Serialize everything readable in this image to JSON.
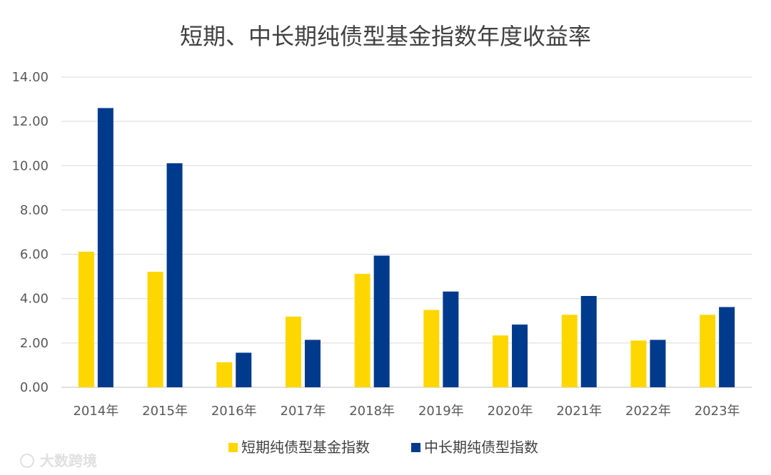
{
  "chart_data": {
    "type": "bar",
    "title": "短期、中长期纯债型基金指数年度收益率",
    "categories": [
      "2014年",
      "2015年",
      "2016年",
      "2017年",
      "2018年",
      "2019年",
      "2020年",
      "2021年",
      "2022年",
      "2023年"
    ],
    "series": [
      {
        "name": "短期纯债型基金指数",
        "color": "#FFD700",
        "values": [
          6.12,
          5.21,
          1.13,
          3.19,
          5.12,
          3.49,
          2.34,
          3.27,
          2.11,
          3.27
        ]
      },
      {
        "name": "中长期纯债型指数",
        "color": "#003A8C",
        "values": [
          12.6,
          10.11,
          1.56,
          2.14,
          5.94,
          4.32,
          2.83,
          4.12,
          2.14,
          3.62
        ]
      }
    ],
    "yticks": [
      "0.00",
      "2.00",
      "4.00",
      "6.00",
      "8.00",
      "10.00",
      "12.00",
      "14.00"
    ],
    "ylim": [
      0,
      14
    ],
    "grid": true,
    "legend": "bottom-center",
    "watermark": "大数跨境"
  }
}
